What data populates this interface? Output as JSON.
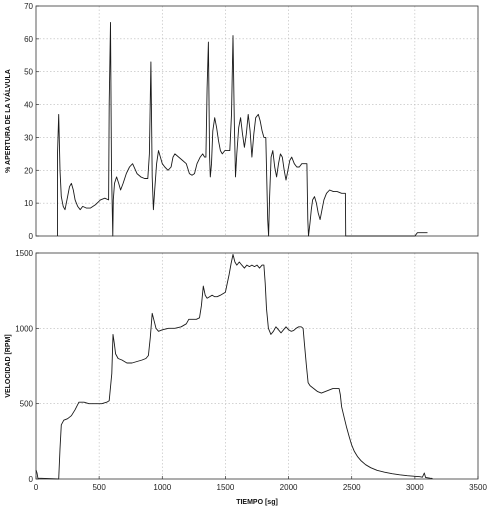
{
  "chart_data": [
    {
      "type": "line",
      "title": "",
      "xlabel": "",
      "ylabel": "%  APERTURA DE LA VÁLVULA",
      "xlim": [
        0,
        3500
      ],
      "ylim": [
        0,
        70
      ],
      "xticks": [],
      "yticks": [
        0,
        10,
        20,
        30,
        40,
        50,
        60,
        70
      ],
      "grid": true,
      "series": [
        {
          "values_xy": [
            [
              170,
              0
            ],
            [
              170,
              25
            ],
            [
              180,
              37
            ],
            [
              190,
              20
            ],
            [
              200,
              12
            ],
            [
              215,
              9
            ],
            [
              230,
              8
            ],
            [
              250,
              12
            ],
            [
              265,
              15
            ],
            [
              280,
              16
            ],
            [
              295,
              14
            ],
            [
              310,
              11
            ],
            [
              330,
              9
            ],
            [
              350,
              8
            ],
            [
              370,
              9
            ],
            [
              400,
              8.5
            ],
            [
              430,
              8.5
            ],
            [
              470,
              9.5
            ],
            [
              510,
              11
            ],
            [
              545,
              11.5
            ],
            [
              575,
              11
            ],
            [
              580,
              40
            ],
            [
              590,
              65
            ],
            [
              598,
              20
            ],
            [
              608,
              0
            ],
            [
              612,
              11
            ],
            [
              622,
              16
            ],
            [
              638,
              18
            ],
            [
              655,
              16
            ],
            [
              670,
              14
            ],
            [
              690,
              16
            ],
            [
              715,
              19
            ],
            [
              740,
              21
            ],
            [
              765,
              22
            ],
            [
              800,
              19
            ],
            [
              830,
              18
            ],
            [
              860,
              17.5
            ],
            [
              885,
              17.5
            ],
            [
              898,
              25
            ],
            [
              910,
              53
            ],
            [
              920,
              18
            ],
            [
              930,
              8
            ],
            [
              940,
              14
            ],
            [
              955,
              22
            ],
            [
              970,
              26
            ],
            [
              985,
              24
            ],
            [
              1000,
              22
            ],
            [
              1020,
              21
            ],
            [
              1045,
              20
            ],
            [
              1070,
              21
            ],
            [
              1085,
              24
            ],
            [
              1100,
              25
            ],
            [
              1130,
              24
            ],
            [
              1160,
              23
            ],
            [
              1190,
              22
            ],
            [
              1215,
              19
            ],
            [
              1235,
              18.5
            ],
            [
              1255,
              19
            ],
            [
              1275,
              22
            ],
            [
              1300,
              24
            ],
            [
              1320,
              25
            ],
            [
              1335,
              24
            ],
            [
              1345,
              24
            ],
            [
              1355,
              45
            ],
            [
              1365,
              59
            ],
            [
              1375,
              24
            ],
            [
              1380,
              18
            ],
            [
              1390,
              22
            ],
            [
              1400,
              32
            ],
            [
              1415,
              36
            ],
            [
              1430,
              33
            ],
            [
              1445,
              29
            ],
            [
              1460,
              26
            ],
            [
              1475,
              25
            ],
            [
              1495,
              26
            ],
            [
              1515,
              26
            ],
            [
              1535,
              26
            ],
            [
              1548,
              37
            ],
            [
              1560,
              61
            ],
            [
              1570,
              35
            ],
            [
              1580,
              18
            ],
            [
              1590,
              25
            ],
            [
              1605,
              33
            ],
            [
              1620,
              36
            ],
            [
              1635,
              31
            ],
            [
              1650,
              27
            ],
            [
              1665,
              31
            ],
            [
              1680,
              37
            ],
            [
              1695,
              32
            ],
            [
              1710,
              24
            ],
            [
              1725,
              31
            ],
            [
              1740,
              36
            ],
            [
              1760,
              37
            ],
            [
              1775,
              35
            ],
            [
              1790,
              32
            ],
            [
              1805,
              30
            ],
            [
              1820,
              30
            ],
            [
              1835,
              5
            ],
            [
              1842,
              0
            ],
            [
              1850,
              12
            ],
            [
              1862,
              24
            ],
            [
              1875,
              26
            ],
            [
              1890,
              21
            ],
            [
              1905,
              18
            ],
            [
              1920,
              22
            ],
            [
              1935,
              25
            ],
            [
              1950,
              24
            ],
            [
              1965,
              20
            ],
            [
              1980,
              17
            ],
            [
              1995,
              20
            ],
            [
              2010,
              23
            ],
            [
              2025,
              24
            ],
            [
              2045,
              22
            ],
            [
              2065,
              21
            ],
            [
              2085,
              21
            ],
            [
              2105,
              22
            ],
            [
              2125,
              22
            ],
            [
              2145,
              22
            ],
            [
              2152,
              5
            ],
            [
              2158,
              0
            ],
            [
              2170,
              4
            ],
            [
              2180,
              8
            ],
            [
              2190,
              11
            ],
            [
              2205,
              12
            ],
            [
              2220,
              10
            ],
            [
              2235,
              7
            ],
            [
              2250,
              5
            ],
            [
              2265,
              8
            ],
            [
              2280,
              11
            ],
            [
              2300,
              13
            ],
            [
              2325,
              14
            ],
            [
              2355,
              13.5
            ],
            [
              2385,
              13.5
            ],
            [
              2420,
              13
            ],
            [
              2450,
              13
            ],
            [
              2452,
              0
            ],
            [
              3000,
              0
            ],
            [
              3020,
              1
            ],
            [
              3050,
              1
            ],
            [
              3100,
              1
            ]
          ]
        }
      ]
    },
    {
      "type": "line",
      "title": "",
      "xlabel": "TIEMPO  [sg]",
      "ylabel": "VELOCIDAD  [RPM]",
      "xlim": [
        0,
        3500
      ],
      "ylim": [
        0,
        1500
      ],
      "xticks": [
        0,
        500,
        1000,
        1500,
        2000,
        2500,
        3000,
        3500
      ],
      "yticks": [
        0,
        500,
        1000,
        1500
      ],
      "grid": true,
      "series": [
        {
          "values_xy": [
            [
              0,
              60
            ],
            [
              8,
              40
            ],
            [
              15,
              5
            ],
            [
              180,
              0
            ],
            [
              190,
              200
            ],
            [
              200,
              360
            ],
            [
              220,
              390
            ],
            [
              250,
              400
            ],
            [
              280,
              420
            ],
            [
              310,
              460
            ],
            [
              340,
              510
            ],
            [
              380,
              510
            ],
            [
              420,
              500
            ],
            [
              460,
              500
            ],
            [
              520,
              500
            ],
            [
              560,
              510
            ],
            [
              580,
              520
            ],
            [
              600,
              700
            ],
            [
              610,
              960
            ],
            [
              620,
              900
            ],
            [
              630,
              830
            ],
            [
              650,
              800
            ],
            [
              680,
              790
            ],
            [
              720,
              770
            ],
            [
              760,
              770
            ],
            [
              800,
              780
            ],
            [
              840,
              790
            ],
            [
              870,
              800
            ],
            [
              890,
              820
            ],
            [
              905,
              940
            ],
            [
              920,
              1100
            ],
            [
              935,
              1050
            ],
            [
              950,
              1000
            ],
            [
              970,
              980
            ],
            [
              1000,
              990
            ],
            [
              1050,
              1000
            ],
            [
              1100,
              1000
            ],
            [
              1150,
              1010
            ],
            [
              1190,
              1030
            ],
            [
              1210,
              1060
            ],
            [
              1240,
              1060
            ],
            [
              1270,
              1060
            ],
            [
              1295,
              1070
            ],
            [
              1310,
              1150
            ],
            [
              1325,
              1280
            ],
            [
              1340,
              1220
            ],
            [
              1355,
              1200
            ],
            [
              1375,
              1210
            ],
            [
              1395,
              1220
            ],
            [
              1415,
              1210
            ],
            [
              1435,
              1210
            ],
            [
              1460,
              1220
            ],
            [
              1480,
              1230
            ],
            [
              1500,
              1240
            ],
            [
              1515,
              1300
            ],
            [
              1530,
              1360
            ],
            [
              1545,
              1430
            ],
            [
              1560,
              1490
            ],
            [
              1575,
              1440
            ],
            [
              1590,
              1420
            ],
            [
              1610,
              1440
            ],
            [
              1630,
              1420
            ],
            [
              1650,
              1400
            ],
            [
              1670,
              1420
            ],
            [
              1690,
              1410
            ],
            [
              1710,
              1420
            ],
            [
              1730,
              1410
            ],
            [
              1750,
              1420
            ],
            [
              1770,
              1400
            ],
            [
              1790,
              1420
            ],
            [
              1805,
              1420
            ],
            [
              1815,
              1300
            ],
            [
              1825,
              1130
            ],
            [
              1840,
              1000
            ],
            [
              1860,
              960
            ],
            [
              1880,
              980
            ],
            [
              1900,
              1010
            ],
            [
              1920,
              990
            ],
            [
              1940,
              970
            ],
            [
              1960,
              990
            ],
            [
              1980,
              1010
            ],
            [
              2000,
              990
            ],
            [
              2020,
              980
            ],
            [
              2040,
              985
            ],
            [
              2060,
              1000
            ],
            [
              2080,
              1010
            ],
            [
              2100,
              1010
            ],
            [
              2115,
              1000
            ],
            [
              2125,
              900
            ],
            [
              2140,
              760
            ],
            [
              2155,
              640
            ],
            [
              2170,
              620
            ],
            [
              2200,
              600
            ],
            [
              2230,
              580
            ],
            [
              2260,
              570
            ],
            [
              2290,
              580
            ],
            [
              2320,
              590
            ],
            [
              2350,
              600
            ],
            [
              2380,
              600
            ],
            [
              2400,
              600
            ],
            [
              2410,
              560
            ],
            [
              2420,
              480
            ],
            [
              2440,
              410
            ],
            [
              2460,
              340
            ],
            [
              2480,
              280
            ],
            [
              2500,
              225
            ],
            [
              2520,
              185
            ],
            [
              2545,
              150
            ],
            [
              2575,
              120
            ],
            [
              2610,
              95
            ],
            [
              2650,
              75
            ],
            [
              2700,
              58
            ],
            [
              2760,
              45
            ],
            [
              2820,
              35
            ],
            [
              2880,
              28
            ],
            [
              2940,
              22
            ],
            [
              3000,
              18
            ],
            [
              3040,
              15
            ],
            [
              3060,
              12
            ],
            [
              3075,
              40
            ],
            [
              3085,
              10
            ],
            [
              3120,
              5
            ],
            [
              3140,
              3
            ]
          ]
        }
      ]
    }
  ]
}
